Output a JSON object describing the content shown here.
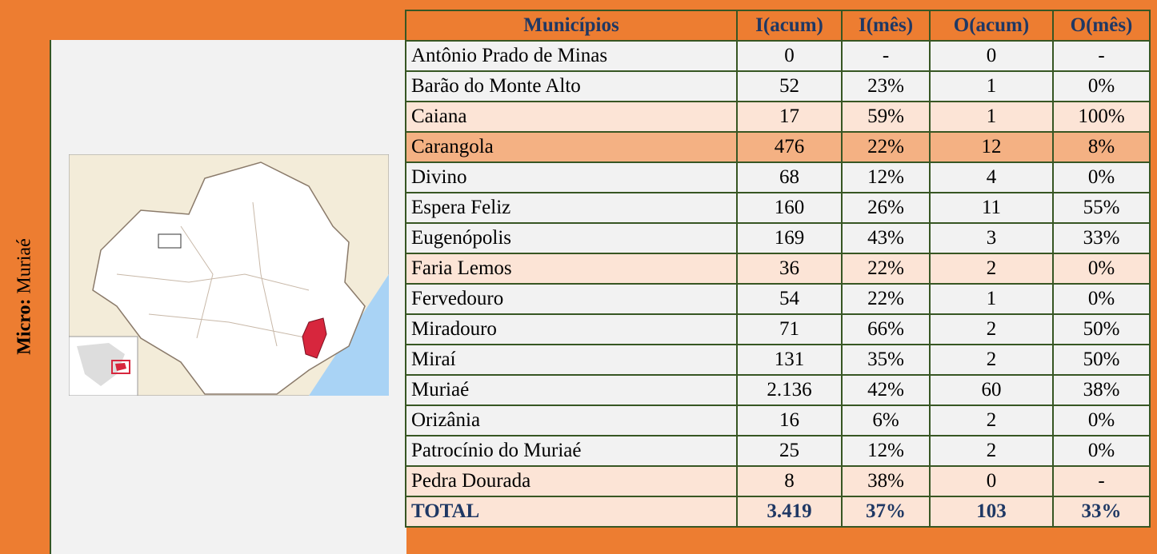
{
  "side_label": {
    "bold": "Micro:",
    "text": "Muriaé"
  },
  "table": {
    "header": [
      "Municípios",
      "I(acum)",
      "I(mês)",
      "O(acum)",
      "O(mês)"
    ],
    "rows": [
      [
        "Antônio Prado de Minas",
        "0",
        "-",
        "0",
        "-"
      ],
      [
        "Barão do Monte Alto",
        "52",
        "23%",
        "1",
        "0%"
      ],
      [
        "Caiana",
        "17",
        "59%",
        "1",
        "100%"
      ],
      [
        "Carangola",
        "476",
        "22%",
        "12",
        "8%"
      ],
      [
        "Divino",
        "68",
        "12%",
        "4",
        "0%"
      ],
      [
        "Espera Feliz",
        "160",
        "26%",
        "11",
        "55%"
      ],
      [
        "Eugenópolis",
        "169",
        "43%",
        "3",
        "33%"
      ],
      [
        "Faria Lemos",
        "36",
        "22%",
        "2",
        "0%"
      ],
      [
        "Fervedouro",
        "54",
        "22%",
        "1",
        "0%"
      ],
      [
        "Miradouro",
        "71",
        "66%",
        "2",
        "50%"
      ],
      [
        "Miraí",
        "131",
        "35%",
        "2",
        "50%"
      ],
      [
        "Muriaé",
        "2.136",
        "42%",
        "60",
        "38%"
      ],
      [
        "Orizânia",
        "16",
        "6%",
        "2",
        "0%"
      ],
      [
        "Patrocínio do Muriaé",
        "25",
        "12%",
        "2",
        "0%"
      ],
      [
        "Pedra Dourada",
        "8",
        "38%",
        "0",
        "-"
      ]
    ],
    "total": [
      "TOTAL",
      "3.419",
      "37%",
      "103",
      "33%"
    ]
  }
}
